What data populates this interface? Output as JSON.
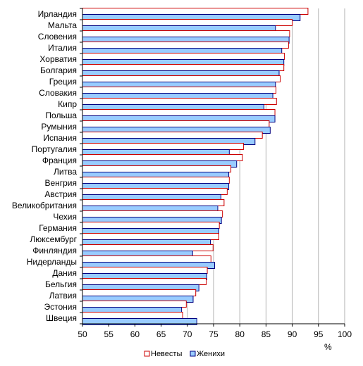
{
  "chart_data": {
    "type": "bar",
    "orientation": "horizontal",
    "categories": [
      "Ирландия",
      "Мальта",
      "Словения",
      "Италия",
      "Хорватия",
      "Болгария",
      "Греция",
      "Словакия",
      "Кипр",
      "Польша",
      "Румыния",
      "Испания",
      "Португалия",
      "Франция",
      "Литва",
      "Венгрия",
      "Австрия",
      "Великобритания",
      "Чехия",
      "Германия",
      "Люксембург",
      "Финляндия",
      "Нидерланды",
      "Дания",
      "Бельгия",
      "Латвия",
      "Эстония",
      "Швеция"
    ],
    "series": [
      {
        "name": "Невесты",
        "color": "#cc0000",
        "fill": "#ffffff",
        "values": [
          93.0,
          90.0,
          89.5,
          89.3,
          88.5,
          88.4,
          87.7,
          86.9,
          87.0,
          86.7,
          85.6,
          84.3,
          80.7,
          80.5,
          78.3,
          78.0,
          77.6,
          77.0,
          76.7,
          76.1,
          76.0,
          74.9,
          74.5,
          73.8,
          73.6,
          71.6,
          69.8,
          69.1
        ]
      },
      {
        "name": "Женихи",
        "color": "#000080",
        "fill": "#99ccff",
        "values": [
          91.5,
          86.8,
          89.4,
          88.0,
          88.4,
          87.5,
          86.8,
          86.3,
          84.6,
          86.7,
          85.8,
          82.9,
          78.0,
          79.4,
          77.9,
          77.9,
          76.4,
          75.8,
          76.5,
          76.0,
          74.4,
          71.0,
          75.2,
          73.7,
          72.2,
          71.1,
          68.9,
          71.8
        ]
      }
    ],
    "xlim": [
      50,
      100
    ],
    "xticks": [
      "50",
      "55",
      "60",
      "65",
      "70",
      "75",
      "80",
      "85",
      "90",
      "95",
      "100"
    ],
    "xlabel": "%",
    "grid": true,
    "legend_position": "bottom"
  }
}
